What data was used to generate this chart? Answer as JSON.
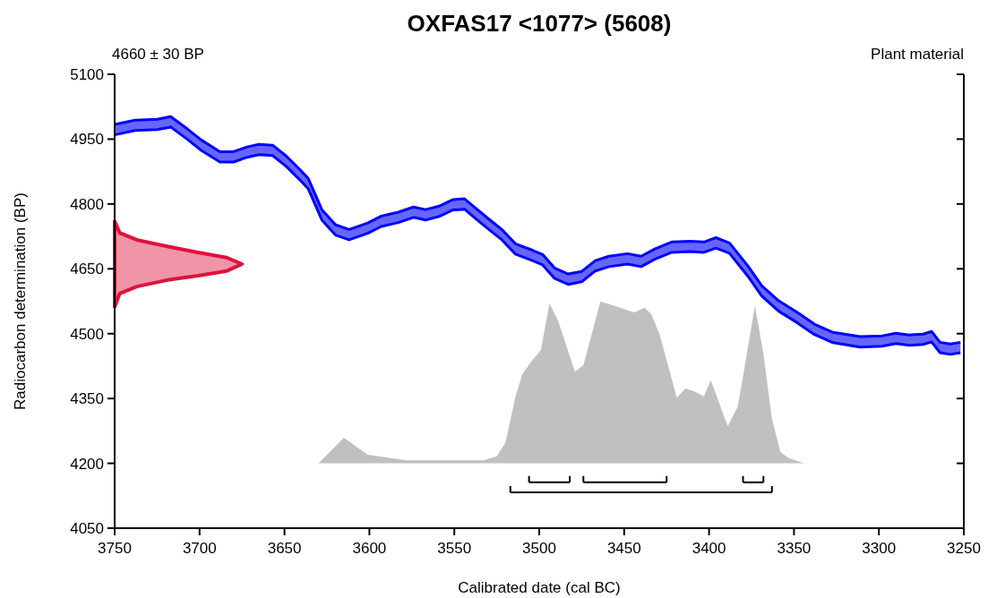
{
  "chart_data": {
    "type": "area",
    "title": "OXFAS17 <1077> (5608)",
    "xlabel": "Calibrated date (cal BC)",
    "ylabel": "Radiocarbon determination (BP)",
    "annotations": [
      "4660 ± 30 BP",
      "Plant material"
    ],
    "xlim": [
      3750,
      3250
    ],
    "xticks": [
      3750,
      3700,
      3650,
      3600,
      3550,
      3500,
      3450,
      3400,
      3350,
      3300,
      3250
    ],
    "ylim": [
      4050,
      5100
    ],
    "yticks": [
      4050,
      4200,
      4350,
      4500,
      4650,
      4800,
      4950,
      5100
    ],
    "grid": false,
    "series": [
      {
        "type": "line",
        "color": "#0000ff",
        "x": [
          3750,
          3738,
          3725,
          3717,
          3707,
          3699,
          3688,
          3680,
          3672,
          3665,
          3657,
          3649,
          3641,
          3636,
          3628,
          3620,
          3612,
          3601,
          3593,
          3583,
          3574,
          3567,
          3559,
          3551,
          3544,
          3538,
          3530,
          3522,
          3514,
          3504,
          3498,
          3491,
          3483,
          3475,
          3467,
          3459,
          3448,
          3440,
          3432,
          3422,
          3411,
          3403,
          3396,
          3388,
          3377,
          3369,
          3359,
          3348,
          3338,
          3327,
          3311,
          3298,
          3290,
          3282,
          3274,
          3269,
          3264,
          3258,
          3252
        ],
        "values": [
          4984,
          4994,
          4996,
          5002,
          4973,
          4948,
          4921,
          4921,
          4932,
          4938,
          4936,
          4911,
          4880,
          4859,
          4787,
          4752,
          4741,
          4756,
          4772,
          4781,
          4793,
          4787,
          4795,
          4810,
          4812,
          4792,
          4766,
          4741,
          4708,
          4693,
          4683,
          4652,
          4638,
          4644,
          4669,
          4679,
          4685,
          4679,
          4696,
          4712,
          4714,
          4712,
          4722,
          4710,
          4656,
          4611,
          4576,
          4549,
          4522,
          4503,
          4493,
          4495,
          4501,
          4497,
          4499,
          4505,
          4480,
          4476,
          4480
        ],
        "lower": [
          4960,
          4970,
          4972,
          4978,
          4949,
          4924,
          4897,
          4897,
          4908,
          4914,
          4912,
          4887,
          4856,
          4835,
          4763,
          4728,
          4717,
          4732,
          4748,
          4757,
          4769,
          4763,
          4771,
          4786,
          4788,
          4768,
          4742,
          4717,
          4684,
          4669,
          4659,
          4628,
          4614,
          4620,
          4645,
          4655,
          4661,
          4655,
          4672,
          4688,
          4690,
          4688,
          4698,
          4686,
          4632,
          4587,
          4552,
          4525,
          4498,
          4479,
          4469,
          4471,
          4477,
          4473,
          4475,
          4481,
          4456,
          4452,
          4456
        ],
        "upper": [
          4984,
          4994,
          4996,
          5002,
          4973,
          4948,
          4921,
          4921,
          4932,
          4938,
          4936,
          4911,
          4880,
          4859,
          4787,
          4752,
          4741,
          4756,
          4772,
          4781,
          4793,
          4787,
          4795,
          4810,
          4812,
          4792,
          4766,
          4741,
          4708,
          4693,
          4683,
          4652,
          4638,
          4644,
          4669,
          4679,
          4685,
          4679,
          4696,
          4712,
          4714,
          4712,
          4722,
          4710,
          4656,
          4611,
          4576,
          4549,
          4522,
          4503,
          4493,
          4495,
          4501,
          4497,
          4499,
          4505,
          4480,
          4476,
          4480
        ]
      },
      {
        "type": "line",
        "color": "#0000ff",
        "x": [
          3750,
          3738,
          3725,
          3717,
          3707,
          3699,
          3688,
          3680,
          3672,
          3665,
          3657,
          3649,
          3641,
          3636,
          3628,
          3620,
          3612,
          3601,
          3593,
          3583,
          3574,
          3567,
          3559,
          3551,
          3544,
          3538,
          3530,
          3522,
          3514,
          3504,
          3498,
          3491,
          3483,
          3475,
          3467,
          3459,
          3448,
          3440,
          3432,
          3422,
          3411,
          3403,
          3396,
          3388,
          3377,
          3369,
          3359,
          3348,
          3338,
          3327,
          3311,
          3298,
          3290,
          3282,
          3274,
          3269,
          3264,
          3258,
          3252
        ],
        "values": [
          4960,
          4970,
          4972,
          4978,
          4949,
          4924,
          4897,
          4897,
          4908,
          4914,
          4912,
          4887,
          4856,
          4835,
          4763,
          4728,
          4717,
          4732,
          4748,
          4757,
          4769,
          4763,
          4771,
          4786,
          4788,
          4768,
          4742,
          4717,
          4684,
          4669,
          4659,
          4628,
          4614,
          4620,
          4645,
          4655,
          4661,
          4655,
          4672,
          4688,
          4690,
          4688,
          4698,
          4686,
          4632,
          4587,
          4552,
          4525,
          4498,
          4479,
          4469,
          4471,
          4477,
          4473,
          4475,
          4481,
          4456,
          4452,
          4456
        ]
      },
      {
        "color": "#dc143c",
        "x": [
          3750,
          3747,
          3737,
          3719,
          3701,
          3684,
          3675,
          3684,
          3701,
          3719,
          3737,
          3747,
          3750
        ],
        "values": [
          4760,
          4733,
          4717,
          4702,
          4688,
          4676,
          4661,
          4645,
          4634,
          4624,
          4609,
          4593,
          4562
        ]
      },
      {
        "type": "area",
        "color": "#c0c0c0",
        "x": [
          3630,
          3615,
          3601,
          3578,
          3533,
          3525,
          3520,
          3514,
          3510,
          3504,
          3499,
          3494,
          3489,
          3479,
          3474,
          3464,
          3460,
          3444,
          3438,
          3434,
          3429,
          3419,
          3414,
          3409,
          3403,
          3399,
          3389,
          3383,
          3373,
          3368,
          3363,
          3358,
          3353,
          3344
        ],
        "values": [
          4200,
          4259,
          4220,
          4207,
          4207,
          4216,
          4247,
          4354,
          4406,
          4439,
          4462,
          4570,
          4531,
          4412,
          4427,
          4574,
          4570,
          4549,
          4560,
          4545,
          4497,
          4352,
          4373,
          4367,
          4355,
          4392,
          4286,
          4332,
          4564,
          4454,
          4303,
          4226,
          4212,
          4200
        ]
      },
      {
        "type": "line",
        "color": "#000000",
        "x": [
          3506,
          3482
        ],
        "values": [
          4156,
          4156
        ]
      },
      {
        "type": "line",
        "color": "#000000",
        "x": [
          3474,
          3425
        ],
        "values": [
          4156,
          4156
        ]
      },
      {
        "type": "line",
        "color": "#000000",
        "x": [
          3380,
          3368
        ],
        "values": [
          4156,
          4156
        ]
      },
      {
        "type": "line",
        "color": "#000000",
        "x": [
          3517,
          3363
        ],
        "values": [
          4133,
          4133
        ]
      }
    ]
  }
}
